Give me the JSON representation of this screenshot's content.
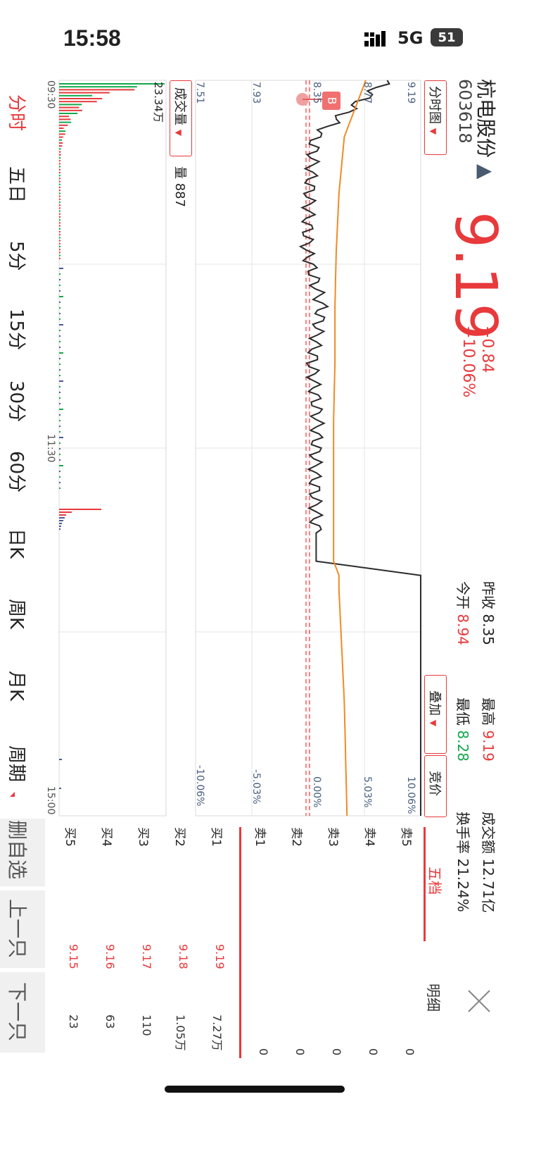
{
  "status_bar": {
    "time": "15:58",
    "network": "5G",
    "battery": "51"
  },
  "stock": {
    "name": "杭电股份",
    "code": "603618",
    "price": "9.19",
    "change": "+0.84",
    "change_pct": "+10.06%",
    "prev_close_label": "昨收",
    "prev_close": "8.35",
    "open_label": "今开",
    "open": "8.94",
    "high_label": "最高",
    "high": "9.19",
    "low_label": "最低",
    "low": "8.28",
    "turnover_label": "成交额",
    "turnover": "12.71亿",
    "turnover_rate_label": "换手率",
    "turnover_rate": "21.24%"
  },
  "controls": {
    "chart_type": "分时图",
    "overlay": "叠加",
    "auction": "竞价",
    "five_level_tab": "五档",
    "detail_tab": "明细",
    "volume_selector": "成交量",
    "volume_label": "量 887"
  },
  "price_axis": [
    "9.19",
    "8.77",
    "8.35",
    "7.93",
    "7.51"
  ],
  "pct_axis": [
    "10.06%",
    "5.03%",
    "0.00%",
    "-5.03%",
    "-10.06%"
  ],
  "time_axis": [
    "09:30",
    "11:30",
    "15:00"
  ],
  "volume_max_label": "23.34万",
  "order_book": {
    "sell": [
      {
        "label": "卖5",
        "price": "",
        "volume": "0"
      },
      {
        "label": "卖4",
        "price": "",
        "volume": "0"
      },
      {
        "label": "卖3",
        "price": "",
        "volume": "0"
      },
      {
        "label": "卖2",
        "price": "",
        "volume": "0"
      },
      {
        "label": "卖1",
        "price": "",
        "volume": "0"
      }
    ],
    "buy": [
      {
        "label": "买1",
        "price": "9.19",
        "volume": "7.27万"
      },
      {
        "label": "买2",
        "price": "9.18",
        "volume": "1.05万"
      },
      {
        "label": "买3",
        "price": "9.17",
        "volume": "110"
      },
      {
        "label": "买4",
        "price": "9.16",
        "volume": "63"
      },
      {
        "label": "买5",
        "price": "9.15",
        "volume": "23"
      }
    ]
  },
  "period_tabs": [
    "分时",
    "五日",
    "5分",
    "15分",
    "30分",
    "60分",
    "日K",
    "周K",
    "月K",
    "周期"
  ],
  "bottom_actions": {
    "delete": "删自选",
    "prev": "上一只",
    "next": "下一只"
  },
  "buy_marker": "B",
  "colors": {
    "up": "#e8393b",
    "down": "#14a84d",
    "price_line": "#2b2b2b",
    "avg_line": "#f08a24"
  },
  "chart_data": {
    "type": "line",
    "x": [
      "09:30",
      "09:45",
      "10:00",
      "10:15",
      "10:30",
      "10:45",
      "11:00",
      "11:15",
      "11:30",
      "13:00",
      "13:30",
      "14:00",
      "14:30",
      "15:00"
    ],
    "series": [
      {
        "values": [
          8.94,
          8.4,
          8.36,
          8.34,
          8.45,
          8.38,
          8.42,
          8.4,
          8.41,
          9.19,
          9.19,
          9.19,
          9.19,
          9.19
        ]
      },
      {
        "values": [
          8.78,
          8.62,
          8.58,
          8.56,
          8.55,
          8.55,
          8.54,
          8.54,
          8.54,
          8.58,
          8.6,
          8.62,
          8.63,
          8.64
        ]
      }
    ],
    "ylim": [
      7.51,
      9.19
    ]
  }
}
